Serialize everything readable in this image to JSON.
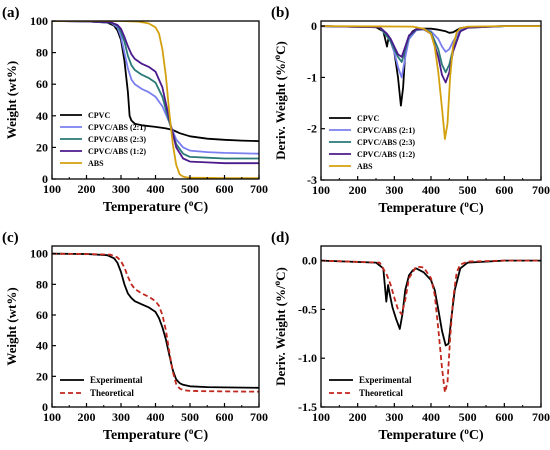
{
  "chart_data": [
    {
      "panel_label": "(a)",
      "type": "line",
      "xlabel_main": "Temperature (",
      "xlabel_sup": "o",
      "xlabel_end": "C)",
      "ylabel": "Weight (wt%)",
      "xlim": [
        100,
        700
      ],
      "ylim": [
        0,
        100
      ],
      "xticks": [
        100,
        200,
        300,
        400,
        500,
        600,
        700
      ],
      "yticks": [
        0,
        20,
        40,
        60,
        80,
        100
      ],
      "grid": false,
      "legend_position": "lower-left",
      "series": [
        {
          "name": "CPVC",
          "color": "#000000",
          "x": [
            100,
            200,
            260,
            280,
            290,
            300,
            310,
            320,
            325,
            330,
            340,
            360,
            400,
            430,
            450,
            470,
            500,
            550,
            600,
            650,
            700
          ],
          "y": [
            100,
            99.8,
            99,
            97,
            94,
            88,
            75,
            55,
            40,
            37,
            35,
            34,
            33,
            32,
            31,
            29,
            27,
            25.5,
            24.8,
            24.3,
            24
          ]
        },
        {
          "name": "CPVC/ABS (2:1)",
          "color": "#7b7ff0",
          "x": [
            100,
            200,
            270,
            290,
            300,
            310,
            320,
            330,
            340,
            360,
            380,
            400,
            420,
            440,
            460,
            480,
            500,
            550,
            600,
            700
          ],
          "y": [
            100,
            99.8,
            99,
            96,
            90,
            80,
            70,
            63,
            60,
            57,
            55,
            52,
            46,
            36,
            25,
            20,
            18,
            17,
            16.5,
            16
          ]
        },
        {
          "name": "CPVC/ABS (2:3)",
          "color": "#2a7a78",
          "x": [
            100,
            200,
            270,
            290,
            300,
            310,
            320,
            330,
            340,
            360,
            380,
            400,
            420,
            440,
            460,
            480,
            500,
            550,
            600,
            700
          ],
          "y": [
            100,
            99.8,
            99,
            97,
            93,
            87,
            78,
            72,
            69,
            66,
            64,
            61,
            52,
            36,
            22,
            16,
            14,
            13.5,
            13,
            13
          ]
        },
        {
          "name": "CPVC/ABS (1:2)",
          "color": "#4b1a8c",
          "x": [
            100,
            200,
            270,
            290,
            300,
            310,
            320,
            330,
            340,
            360,
            380,
            400,
            420,
            440,
            460,
            480,
            500,
            550,
            600,
            700
          ],
          "y": [
            100,
            99.8,
            99.2,
            97.5,
            95,
            90,
            84,
            79,
            76,
            73,
            71,
            68,
            58,
            38,
            20,
            13,
            11,
            10.5,
            10,
            10
          ]
        },
        {
          "name": "ABS",
          "color": "#d4a10e",
          "x": [
            100,
            300,
            350,
            380,
            400,
            410,
            420,
            430,
            440,
            450,
            460,
            470,
            480,
            490,
            500,
            600,
            700
          ],
          "y": [
            100,
            100,
            99.6,
            98.5,
            96,
            92,
            82,
            65,
            42,
            22,
            9,
            3,
            1.5,
            1,
            0.8,
            0.6,
            0.5
          ]
        }
      ]
    },
    {
      "panel_label": "(b)",
      "type": "line",
      "xlabel_main": "Temperature (",
      "xlabel_sup": "o",
      "xlabel_end": "C)",
      "ylabel": "Deriv. Weight (%/",
      "ylabel_sup": "o",
      "ylabel_end": "C)",
      "xlim": [
        100,
        700
      ],
      "ylim": [
        -3,
        0.1
      ],
      "xticks": [
        100,
        200,
        300,
        400,
        500,
        600,
        700
      ],
      "yticks": [
        0,
        -1,
        -2,
        -3
      ],
      "grid": false,
      "legend_position": "lower-left",
      "series": [
        {
          "name": "CPVC",
          "color": "#000000",
          "x": [
            100,
            250,
            270,
            280,
            285,
            290,
            300,
            310,
            318,
            324,
            330,
            340,
            350,
            360,
            380,
            400,
            420,
            440,
            450,
            460,
            470,
            480,
            500,
            600,
            700
          ],
          "y": [
            0,
            -0.02,
            -0.1,
            -0.4,
            -0.2,
            -0.3,
            -0.5,
            -1.0,
            -1.55,
            -1.2,
            -0.5,
            -0.2,
            -0.1,
            -0.06,
            -0.05,
            -0.05,
            -0.07,
            -0.1,
            -0.13,
            -0.12,
            -0.08,
            -0.04,
            -0.02,
            0,
            0
          ]
        },
        {
          "name": "CPVC/ABS (2:1)",
          "color": "#7b7ff0",
          "x": [
            100,
            260,
            280,
            290,
            300,
            310,
            320,
            330,
            340,
            360,
            380,
            400,
            420,
            430,
            440,
            450,
            460,
            480,
            500,
            600,
            700
          ],
          "y": [
            0,
            -0.02,
            -0.2,
            -0.3,
            -0.5,
            -0.8,
            -1.0,
            -0.6,
            -0.25,
            -0.08,
            -0.06,
            -0.1,
            -0.25,
            -0.4,
            -0.5,
            -0.45,
            -0.3,
            -0.08,
            -0.02,
            0,
            0
          ]
        },
        {
          "name": "CPVC/ABS (2:3)",
          "color": "#2a7a78",
          "x": [
            100,
            260,
            280,
            290,
            300,
            310,
            320,
            330,
            340,
            360,
            380,
            400,
            420,
            430,
            440,
            450,
            460,
            480,
            500,
            600,
            700
          ],
          "y": [
            0,
            -0.02,
            -0.2,
            -0.3,
            -0.45,
            -0.6,
            -0.7,
            -0.45,
            -0.2,
            -0.07,
            -0.06,
            -0.12,
            -0.45,
            -0.75,
            -0.9,
            -0.75,
            -0.45,
            -0.1,
            -0.03,
            0,
            0
          ]
        },
        {
          "name": "CPVC/ABS (1:2)",
          "color": "#4b1a8c",
          "x": [
            100,
            260,
            280,
            290,
            300,
            310,
            320,
            330,
            340,
            360,
            380,
            400,
            420,
            430,
            440,
            450,
            460,
            480,
            500,
            600,
            700
          ],
          "y": [
            0,
            -0.02,
            -0.15,
            -0.25,
            -0.4,
            -0.55,
            -0.6,
            -0.4,
            -0.18,
            -0.06,
            -0.06,
            -0.15,
            -0.6,
            -0.95,
            -1.1,
            -0.9,
            -0.5,
            -0.1,
            -0.03,
            0,
            0
          ]
        },
        {
          "name": "ABS",
          "color": "#d4a10e",
          "x": [
            100,
            350,
            380,
            400,
            410,
            420,
            430,
            438,
            445,
            452,
            460,
            470,
            480,
            500,
            600,
            700
          ],
          "y": [
            0,
            -0.01,
            -0.05,
            -0.15,
            -0.4,
            -0.9,
            -1.6,
            -2.2,
            -1.9,
            -1.0,
            -0.4,
            -0.12,
            -0.04,
            -0.01,
            0,
            0
          ]
        }
      ]
    },
    {
      "panel_label": "(c)",
      "type": "line",
      "xlabel_main": "Temperature (",
      "xlabel_sup": "o",
      "xlabel_end": "C)",
      "ylabel": "Weight (wt%)",
      "xlim": [
        100,
        700
      ],
      "ylim": [
        0,
        105
      ],
      "xticks": [
        100,
        200,
        300,
        400,
        500,
        600,
        700
      ],
      "yticks": [
        0,
        20,
        40,
        60,
        80,
        100
      ],
      "grid": false,
      "legend_position": "lower-left",
      "series": [
        {
          "name": "Experimental",
          "color": "#000000",
          "dashed": false,
          "x": [
            100,
            200,
            260,
            280,
            290,
            300,
            310,
            320,
            330,
            340,
            360,
            380,
            400,
            410,
            420,
            430,
            440,
            450,
            460,
            470,
            480,
            500,
            550,
            600,
            700
          ],
          "y": [
            100,
            99.8,
            99,
            97,
            94,
            88,
            80,
            74,
            71,
            69,
            67,
            65,
            62,
            58,
            52,
            44,
            34,
            24,
            18,
            15.5,
            14.5,
            13.5,
            13,
            12.8,
            12.5
          ]
        },
        {
          "name": "Theoretical",
          "color": "#c0281e",
          "dashed": true,
          "x": [
            100,
            200,
            270,
            290,
            300,
            310,
            320,
            330,
            340,
            360,
            380,
            400,
            410,
            420,
            430,
            440,
            450,
            460,
            470,
            480,
            500,
            550,
            600,
            700
          ],
          "y": [
            100,
            99.8,
            99.3,
            97.5,
            95,
            91,
            85,
            80,
            77,
            74,
            72,
            69,
            66,
            60,
            50,
            36,
            23,
            15,
            12,
            11,
            10.5,
            10.3,
            10.2,
            10
          ]
        }
      ]
    },
    {
      "panel_label": "(d)",
      "type": "line",
      "xlabel_main": "Temperature (",
      "xlabel_sup": "o",
      "xlabel_end": "C)",
      "ylabel": "Deriv. Weight (%/",
      "ylabel_sup": "o",
      "ylabel_end": "C)",
      "xlim": [
        100,
        700
      ],
      "ylim": [
        -1.5,
        0.15
      ],
      "xticks": [
        100,
        200,
        300,
        400,
        500,
        600,
        700
      ],
      "yticks": [
        0.0,
        -0.5,
        -1.0,
        -1.5
      ],
      "ytick_labels": [
        "0.0",
        "-0.5",
        "-1.0",
        "-1.5"
      ],
      "grid": false,
      "legend_position": "lower-left",
      "series": [
        {
          "name": "Experimental",
          "color": "#000000",
          "dashed": false,
          "x": [
            100,
            250,
            270,
            278,
            283,
            288,
            295,
            305,
            315,
            322,
            330,
            340,
            350,
            360,
            380,
            400,
            410,
            420,
            430,
            440,
            448,
            455,
            465,
            480,
            500,
            600,
            700
          ],
          "y": [
            0,
            -0.02,
            -0.08,
            -0.42,
            -0.25,
            -0.35,
            -0.48,
            -0.6,
            -0.7,
            -0.55,
            -0.3,
            -0.15,
            -0.1,
            -0.08,
            -0.12,
            -0.2,
            -0.3,
            -0.5,
            -0.72,
            -0.87,
            -0.85,
            -0.6,
            -0.3,
            -0.08,
            -0.02,
            0,
            0
          ]
        },
        {
          "name": "Theoretical",
          "color": "#c0281e",
          "dashed": true,
          "x": [
            100,
            260,
            280,
            290,
            300,
            310,
            320,
            330,
            340,
            360,
            380,
            400,
            410,
            420,
            430,
            438,
            445,
            452,
            460,
            470,
            480,
            500,
            600,
            700
          ],
          "y": [
            0,
            -0.02,
            -0.15,
            -0.25,
            -0.38,
            -0.5,
            -0.55,
            -0.4,
            -0.18,
            -0.06,
            -0.07,
            -0.18,
            -0.35,
            -0.7,
            -1.1,
            -1.35,
            -1.25,
            -0.8,
            -0.4,
            -0.12,
            -0.04,
            -0.01,
            0,
            0
          ]
        }
      ]
    }
  ]
}
